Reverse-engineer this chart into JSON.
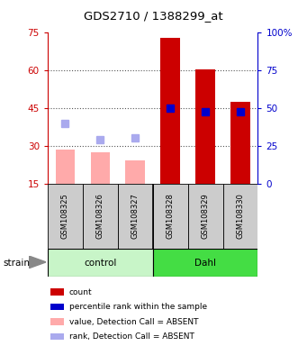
{
  "title": "GDS2710 / 1388299_at",
  "samples": [
    "GSM108325",
    "GSM108326",
    "GSM108327",
    "GSM108328",
    "GSM108329",
    "GSM108330"
  ],
  "groups": [
    "control",
    "control",
    "control",
    "Dahl",
    "Dahl",
    "Dahl"
  ],
  "group_labels": [
    "control",
    "Dahl"
  ],
  "group_colors": [
    "#c8f5c8",
    "#44dd44"
  ],
  "bar_values": [
    28.5,
    27.5,
    24.0,
    73.0,
    60.5,
    47.5
  ],
  "bar_absent": [
    true,
    true,
    true,
    false,
    false,
    false
  ],
  "rank_values": [
    39.0,
    32.5,
    33.0,
    45.0,
    43.5,
    43.5
  ],
  "rank_absent": [
    true,
    true,
    true,
    false,
    false,
    false
  ],
  "ylim_left": [
    15,
    75
  ],
  "ylim_right": [
    0,
    100
  ],
  "yticks_left": [
    15,
    30,
    45,
    60,
    75
  ],
  "yticks_right": [
    0,
    25,
    50,
    75,
    100
  ],
  "ytick_dotted": [
    30,
    45,
    60
  ],
  "left_axis_color": "#cc0000",
  "right_axis_color": "#0000cc",
  "bar_color_present": "#cc0000",
  "bar_color_absent": "#ffaaaa",
  "rank_color_present": "#0000cc",
  "rank_color_absent": "#aaaaee",
  "bar_width": 0.55,
  "rank_marker_size": 6,
  "background_color": "#ffffff",
  "plot_bg_color": "#ffffff",
  "grid_color": "#555555",
  "label_box_color": "#cccccc",
  "legend_items": [
    {
      "label": "count",
      "color": "#cc0000"
    },
    {
      "label": "percentile rank within the sample",
      "color": "#0000cc"
    },
    {
      "label": "value, Detection Call = ABSENT",
      "color": "#ffaaaa"
    },
    {
      "label": "rank, Detection Call = ABSENT",
      "color": "#aaaaee"
    }
  ]
}
